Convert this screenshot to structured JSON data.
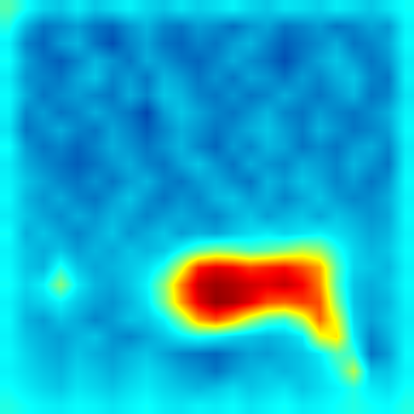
{
  "chart_data": {
    "type": "heatmap",
    "color": "Jet",
    "zlim": [
      0,
      1
    ],
    "tick_labels": false,
    "z": [
      [
        0.45,
        0.38,
        0.32,
        0.3,
        0.35,
        0.3,
        0.33,
        0.36,
        0.32,
        0.3,
        0.34,
        0.31,
        0.33,
        0.36,
        0.32,
        0.3,
        0.34,
        0.33,
        0.31,
        0.35,
        0.33,
        0.3,
        0.34,
        0.38
      ],
      [
        0.4,
        0.28,
        0.2,
        0.22,
        0.25,
        0.2,
        0.18,
        0.24,
        0.28,
        0.22,
        0.2,
        0.25,
        0.23,
        0.19,
        0.24,
        0.26,
        0.2,
        0.22,
        0.25,
        0.2,
        0.22,
        0.26,
        0.24,
        0.36
      ],
      [
        0.36,
        0.22,
        0.18,
        0.25,
        0.28,
        0.2,
        0.15,
        0.22,
        0.26,
        0.2,
        0.18,
        0.22,
        0.2,
        0.25,
        0.28,
        0.22,
        0.17,
        0.2,
        0.23,
        0.27,
        0.2,
        0.22,
        0.26,
        0.37
      ],
      [
        0.38,
        0.26,
        0.2,
        0.17,
        0.22,
        0.28,
        0.24,
        0.2,
        0.27,
        0.24,
        0.2,
        0.18,
        0.22,
        0.27,
        0.23,
        0.2,
        0.15,
        0.21,
        0.26,
        0.3,
        0.25,
        0.2,
        0.24,
        0.35
      ],
      [
        0.35,
        0.24,
        0.22,
        0.2,
        0.26,
        0.3,
        0.22,
        0.25,
        0.2,
        0.28,
        0.25,
        0.2,
        0.24,
        0.2,
        0.26,
        0.24,
        0.2,
        0.25,
        0.22,
        0.27,
        0.3,
        0.22,
        0.2,
        0.36
      ],
      [
        0.37,
        0.27,
        0.2,
        0.23,
        0.25,
        0.22,
        0.2,
        0.27,
        0.22,
        0.3,
        0.28,
        0.22,
        0.2,
        0.24,
        0.2,
        0.22,
        0.27,
        0.23,
        0.2,
        0.24,
        0.28,
        0.2,
        0.22,
        0.34
      ],
      [
        0.36,
        0.22,
        0.25,
        0.2,
        0.22,
        0.27,
        0.23,
        0.2,
        0.14,
        0.25,
        0.3,
        0.26,
        0.22,
        0.2,
        0.24,
        0.28,
        0.22,
        0.2,
        0.25,
        0.22,
        0.2,
        0.23,
        0.27,
        0.36
      ],
      [
        0.34,
        0.2,
        0.23,
        0.27,
        0.22,
        0.2,
        0.26,
        0.22,
        0.17,
        0.22,
        0.27,
        0.24,
        0.2,
        0.23,
        0.27,
        0.3,
        0.25,
        0.21,
        0.28,
        0.24,
        0.2,
        0.22,
        0.25,
        0.37
      ],
      [
        0.38,
        0.25,
        0.2,
        0.22,
        0.18,
        0.22,
        0.27,
        0.24,
        0.2,
        0.24,
        0.28,
        0.22,
        0.18,
        0.25,
        0.22,
        0.28,
        0.26,
        0.2,
        0.23,
        0.2,
        0.25,
        0.27,
        0.22,
        0.35
      ],
      [
        0.35,
        0.27,
        0.23,
        0.2,
        0.17,
        0.2,
        0.24,
        0.27,
        0.22,
        0.2,
        0.26,
        0.3,
        0.24,
        0.2,
        0.27,
        0.24,
        0.22,
        0.27,
        0.25,
        0.22,
        0.28,
        0.24,
        0.2,
        0.36
      ],
      [
        0.36,
        0.3,
        0.26,
        0.22,
        0.2,
        0.24,
        0.2,
        0.25,
        0.28,
        0.22,
        0.2,
        0.25,
        0.27,
        0.23,
        0.2,
        0.28,
        0.25,
        0.3,
        0.27,
        0.22,
        0.25,
        0.2,
        0.24,
        0.37
      ],
      [
        0.37,
        0.28,
        0.24,
        0.27,
        0.22,
        0.2,
        0.25,
        0.3,
        0.24,
        0.2,
        0.24,
        0.22,
        0.28,
        0.3,
        0.25,
        0.27,
        0.22,
        0.26,
        0.3,
        0.25,
        0.22,
        0.23,
        0.27,
        0.36
      ],
      [
        0.35,
        0.3,
        0.26,
        0.23,
        0.27,
        0.24,
        0.28,
        0.26,
        0.22,
        0.25,
        0.27,
        0.24,
        0.22,
        0.27,
        0.3,
        0.25,
        0.28,
        0.3,
        0.26,
        0.3,
        0.27,
        0.24,
        0.26,
        0.37
      ],
      [
        0.38,
        0.27,
        0.3,
        0.26,
        0.22,
        0.26,
        0.3,
        0.24,
        0.27,
        0.3,
        0.25,
        0.28,
        0.26,
        0.3,
        0.33,
        0.35,
        0.32,
        0.34,
        0.36,
        0.33,
        0.3,
        0.26,
        0.28,
        0.36
      ],
      [
        0.36,
        0.3,
        0.27,
        0.3,
        0.25,
        0.28,
        0.26,
        0.3,
        0.28,
        0.3,
        0.38,
        0.45,
        0.5,
        0.48,
        0.44,
        0.46,
        0.5,
        0.55,
        0.52,
        0.4,
        0.32,
        0.28,
        0.3,
        0.37
      ],
      [
        0.37,
        0.3,
        0.28,
        0.4,
        0.3,
        0.26,
        0.28,
        0.3,
        0.33,
        0.4,
        0.58,
        0.85,
        0.9,
        0.88,
        0.82,
        0.85,
        0.87,
        0.8,
        0.72,
        0.45,
        0.32,
        0.3,
        0.28,
        0.36
      ],
      [
        0.38,
        0.32,
        0.36,
        0.5,
        0.35,
        0.28,
        0.26,
        0.3,
        0.36,
        0.5,
        0.75,
        0.93,
        0.97,
        0.95,
        0.92,
        0.9,
        0.93,
        0.88,
        0.75,
        0.45,
        0.3,
        0.27,
        0.3,
        0.37
      ],
      [
        0.36,
        0.3,
        0.32,
        0.36,
        0.3,
        0.26,
        0.24,
        0.28,
        0.34,
        0.48,
        0.72,
        0.9,
        0.98,
        0.96,
        0.9,
        0.8,
        0.78,
        0.82,
        0.8,
        0.5,
        0.3,
        0.26,
        0.28,
        0.36
      ],
      [
        0.37,
        0.28,
        0.25,
        0.3,
        0.27,
        0.22,
        0.25,
        0.3,
        0.3,
        0.36,
        0.5,
        0.72,
        0.8,
        0.7,
        0.55,
        0.45,
        0.42,
        0.55,
        0.78,
        0.6,
        0.32,
        0.26,
        0.3,
        0.35
      ],
      [
        0.36,
        0.3,
        0.27,
        0.25,
        0.28,
        0.3,
        0.24,
        0.22,
        0.26,
        0.3,
        0.35,
        0.38,
        0.36,
        0.32,
        0.3,
        0.28,
        0.3,
        0.35,
        0.6,
        0.65,
        0.35,
        0.22,
        0.28,
        0.36
      ],
      [
        0.37,
        0.32,
        0.28,
        0.26,
        0.3,
        0.27,
        0.25,
        0.28,
        0.3,
        0.26,
        0.22,
        0.2,
        0.18,
        0.22,
        0.26,
        0.25,
        0.28,
        0.3,
        0.35,
        0.45,
        0.42,
        0.2,
        0.25,
        0.37
      ],
      [
        0.36,
        0.33,
        0.3,
        0.28,
        0.32,
        0.3,
        0.27,
        0.3,
        0.33,
        0.3,
        0.26,
        0.24,
        0.2,
        0.25,
        0.28,
        0.3,
        0.28,
        0.3,
        0.33,
        0.4,
        0.55,
        0.3,
        0.3,
        0.36
      ],
      [
        0.38,
        0.35,
        0.32,
        0.3,
        0.34,
        0.32,
        0.3,
        0.33,
        0.35,
        0.32,
        0.3,
        0.28,
        0.3,
        0.33,
        0.3,
        0.32,
        0.34,
        0.3,
        0.33,
        0.36,
        0.4,
        0.35,
        0.33,
        0.38
      ],
      [
        0.4,
        0.38,
        0.36,
        0.35,
        0.37,
        0.36,
        0.34,
        0.36,
        0.38,
        0.35,
        0.34,
        0.36,
        0.35,
        0.37,
        0.34,
        0.36,
        0.38,
        0.35,
        0.36,
        0.38,
        0.4,
        0.38,
        0.37,
        0.4
      ]
    ]
  }
}
